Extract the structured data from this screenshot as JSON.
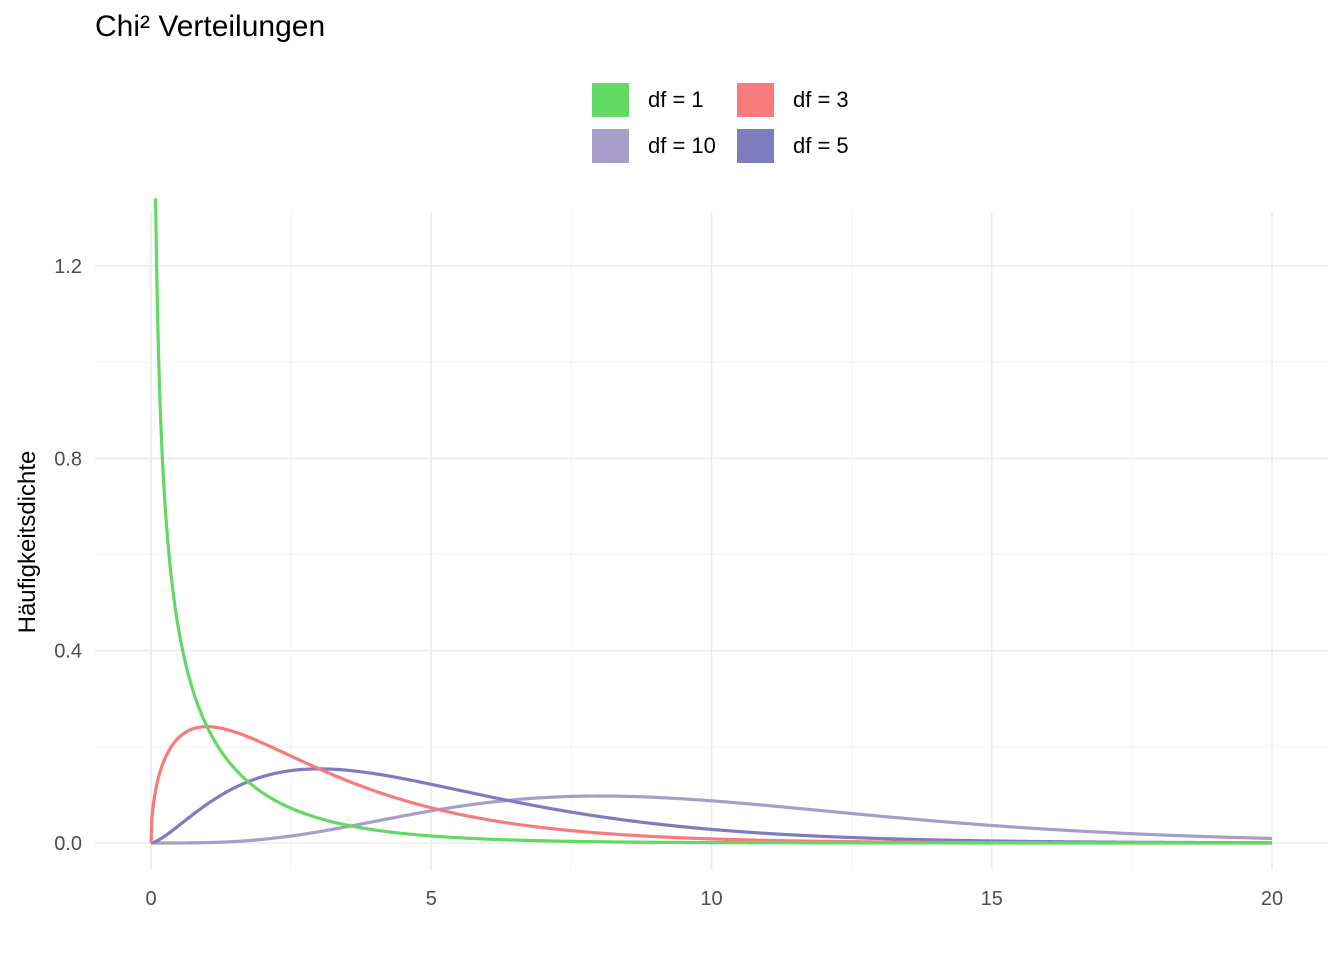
{
  "chart_data": {
    "type": "line",
    "title": "Chi² Verteilungen",
    "xlabel": "",
    "ylabel": "Häufigkeitsdichte",
    "xlim": [
      0,
      20
    ],
    "ylim": [
      0,
      1.2
    ],
    "x_ticks": [
      "0",
      "5",
      "10",
      "15",
      "20"
    ],
    "y_ticks": [
      "0.0",
      "0.4",
      "0.8",
      "1.2"
    ],
    "grid": true,
    "legend_position": "top",
    "series": [
      {
        "name": "df = 1",
        "df": 1,
        "color": "#62d962"
      },
      {
        "name": "df = 3",
        "df": 3,
        "color": "#f77b7b"
      },
      {
        "name": "df = 10",
        "df": 10,
        "color": "#a69dc8"
      },
      {
        "name": "df = 5",
        "df": 5,
        "color": "#7e7bbf"
      }
    ]
  }
}
